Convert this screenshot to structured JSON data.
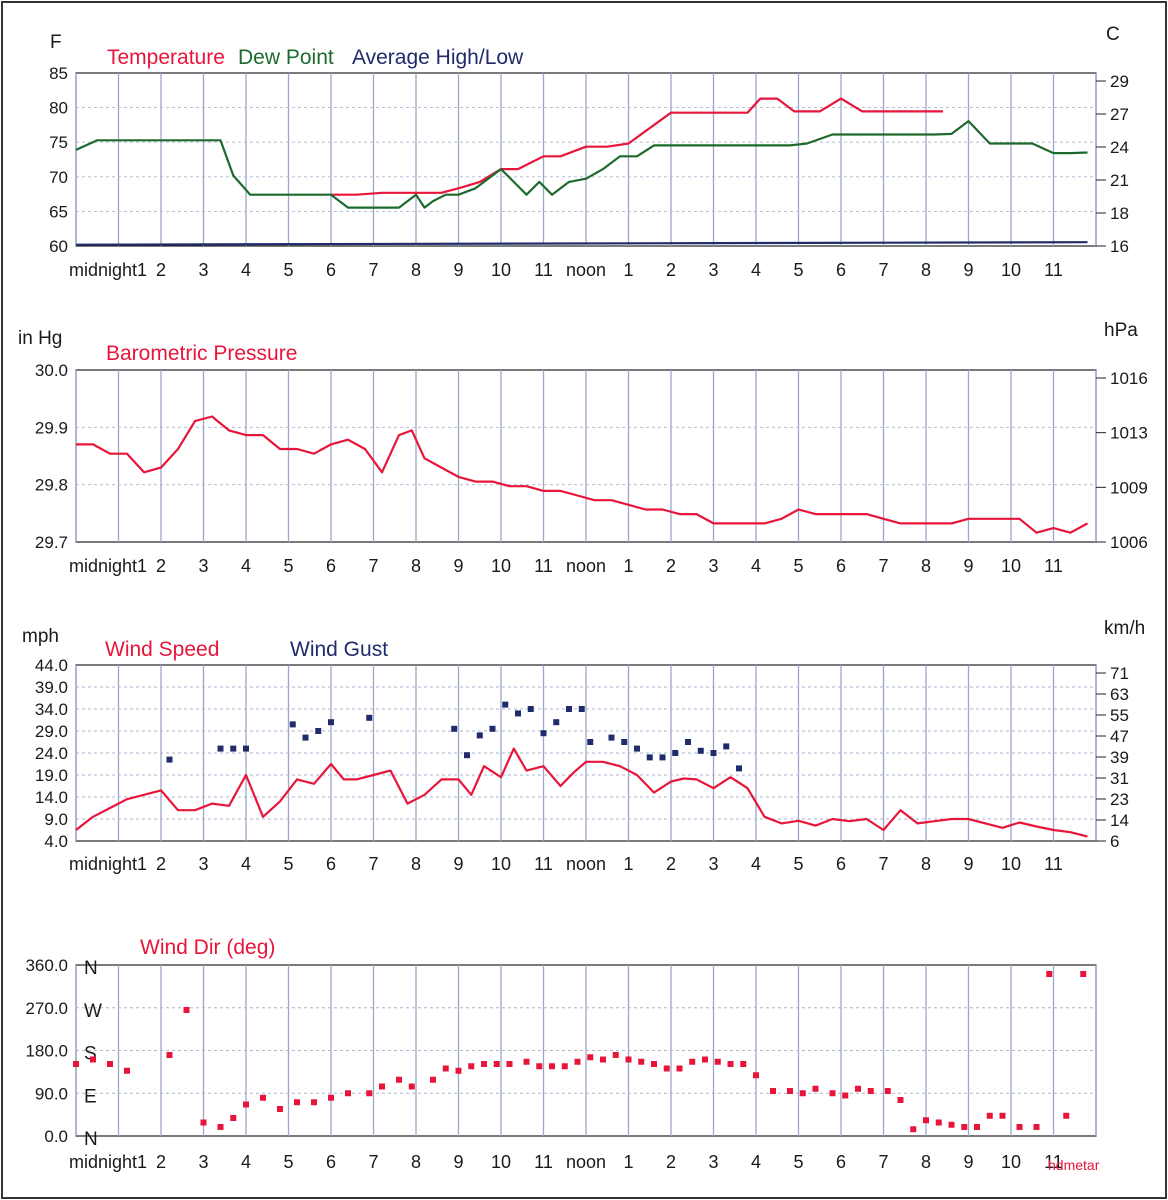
{
  "colors": {
    "temperature": "#e8153b",
    "dew_point": "#1d6b2c",
    "average": "#1f2b6b",
    "pressure": "#e8153b",
    "wind_speed": "#e8153b",
    "wind_gust": "#1f2b6b",
    "wind_dir": "#e8153b",
    "grid": "#9aa7c9"
  },
  "hour_labels": [
    "midnight1",
    "2",
    "3",
    "4",
    "5",
    "6",
    "7",
    "8",
    "9",
    "10",
    "11",
    "noon",
    "1",
    "2",
    "3",
    "4",
    "5",
    "6",
    "7",
    "8",
    "9",
    "10",
    "11"
  ],
  "credit": "hdmetar",
  "chart_data": [
    {
      "id": "temp",
      "type": "line",
      "left_unit": "F",
      "right_unit": "C",
      "legend": [
        "Temperature",
        "Dew Point",
        "Average High/Low"
      ],
      "yticks_left": [
        "85",
        "80",
        "75",
        "70",
        "65",
        "60"
      ],
      "yticks_right": [
        "29",
        "27",
        "24",
        "21",
        "18",
        "16"
      ],
      "ylim": [
        60,
        87
      ],
      "series": [
        {
          "name": "Temperature",
          "color": "#e8153b",
          "x": [
            6.0,
            6.6,
            7.2,
            7.8,
            8.2,
            8.6,
            9.1,
            9.5,
            10.0,
            10.4,
            11.0,
            11.4,
            12.0,
            12.5,
            13.0,
            14.0,
            14.6,
            15.0,
            15.4,
            15.8,
            16.1,
            16.5,
            16.9,
            17.5,
            18.0,
            18.5,
            19.0,
            19.6,
            20.0,
            20.4
          ],
          "y": [
            68,
            68,
            68.3,
            68.3,
            68.3,
            68.3,
            69.2,
            70,
            72,
            72,
            74,
            74,
            75.5,
            75.5,
            76,
            80.8,
            80.8,
            80.8,
            80.8,
            80.8,
            83,
            83,
            81,
            81,
            83,
            81,
            81,
            81,
            81,
            81
          ]
        },
        {
          "name": "Dew Point",
          "color": "#1d6b2c",
          "x": [
            0,
            0.5,
            1.0,
            1.5,
            2.0,
            2.5,
            3.0,
            3.4,
            3.7,
            4.1,
            4.5,
            5.0,
            5.6,
            6.0,
            6.4,
            6.8,
            7.2,
            7.6,
            8.0,
            8.2,
            8.4,
            8.7,
            9.0,
            9.4,
            9.8,
            10.0,
            10.3,
            10.6,
            10.9,
            11.2,
            11.6,
            12.0,
            12.4,
            12.8,
            13.2,
            13.6,
            14.0,
            14.6,
            15.2,
            15.8,
            16.4,
            16.8,
            17.2,
            17.8,
            18.4,
            19.0,
            19.6,
            20.2,
            20.6,
            21.0,
            21.5,
            22.0,
            22.5,
            23.0,
            23.4,
            23.8
          ],
          "y": [
            75,
            76.5,
            76.5,
            76.5,
            76.5,
            76.5,
            76.5,
            76.5,
            71,
            68,
            68,
            68,
            68,
            68,
            66,
            66,
            66,
            66,
            68,
            66,
            67,
            68,
            68,
            69,
            71,
            72,
            70,
            68,
            70,
            68,
            70,
            70.5,
            72,
            74,
            74,
            75.7,
            75.7,
            75.7,
            75.7,
            75.7,
            75.7,
            75.7,
            76,
            77.4,
            77.4,
            77.4,
            77.4,
            77.4,
            77.5,
            79.5,
            76,
            76,
            76,
            74.5,
            74.5,
            74.6
          ]
        },
        {
          "name": "Average High/Low",
          "color": "#1f2b6b",
          "x": [
            0,
            23.8
          ],
          "y": [
            60.2,
            60.6
          ]
        }
      ]
    },
    {
      "id": "pressure",
      "type": "line",
      "left_unit": "in Hg",
      "right_unit": "hPa",
      "legend": [
        "Barometric Pressure"
      ],
      "yticks_left": [
        "30.0",
        "29.9",
        "29.8",
        "29.7"
      ],
      "yticks_right": [
        "1016",
        "1013",
        "1009",
        "1006"
      ],
      "ylim": [
        29.7,
        30.07
      ],
      "series": [
        {
          "name": "Barometric Pressure",
          "color": "#e8153b",
          "x": [
            0,
            0.4,
            0.8,
            1.2,
            1.6,
            2.0,
            2.4,
            2.8,
            3.2,
            3.6,
            4.0,
            4.4,
            4.8,
            5.2,
            5.6,
            6.0,
            6.4,
            6.8,
            7.2,
            7.6,
            7.9,
            8.2,
            8.6,
            9.0,
            9.4,
            9.8,
            10.2,
            10.6,
            11.0,
            11.4,
            11.8,
            12.2,
            12.6,
            13.0,
            13.4,
            13.8,
            14.2,
            14.6,
            15.0,
            15.4,
            15.8,
            16.2,
            16.6,
            17.0,
            17.4,
            17.8,
            18.2,
            18.6,
            19.0,
            19.4,
            19.8,
            20.2,
            20.6,
            21.0,
            21.4,
            21.8,
            22.2,
            22.6,
            23.0,
            23.4,
            23.8
          ],
          "y": [
            29.91,
            29.91,
            29.89,
            29.89,
            29.85,
            29.86,
            29.9,
            29.96,
            29.97,
            29.94,
            29.93,
            29.93,
            29.9,
            29.9,
            29.89,
            29.91,
            29.92,
            29.9,
            29.85,
            29.93,
            29.94,
            29.88,
            29.86,
            29.84,
            29.83,
            29.83,
            29.82,
            29.82,
            29.81,
            29.81,
            29.8,
            29.79,
            29.79,
            29.78,
            29.77,
            29.77,
            29.76,
            29.76,
            29.74,
            29.74,
            29.74,
            29.74,
            29.75,
            29.77,
            29.76,
            29.76,
            29.76,
            29.76,
            29.75,
            29.74,
            29.74,
            29.74,
            29.74,
            29.75,
            29.75,
            29.75,
            29.75,
            29.72,
            29.73,
            29.72,
            29.74
          ]
        }
      ]
    },
    {
      "id": "wind",
      "type": "line",
      "left_unit": "mph",
      "right_unit": "km/h",
      "legend": [
        "Wind Speed",
        "Wind Gust"
      ],
      "yticks_left": [
        "44.0",
        "39.0",
        "34.0",
        "29.0",
        "24.0",
        "19.0",
        "14.0",
        "9.0",
        "4.0"
      ],
      "yticks_right": [
        "71",
        "63",
        "55",
        "47",
        "39",
        "31",
        "23",
        "14",
        "6"
      ],
      "ylim": [
        4,
        44
      ],
      "series": [
        {
          "name": "Wind Speed",
          "color": "#e8153b",
          "x": [
            0,
            0.4,
            0.8,
            1.2,
            1.6,
            2.0,
            2.4,
            2.8,
            3.2,
            3.6,
            4.0,
            4.4,
            4.8,
            5.2,
            5.6,
            6.0,
            6.3,
            6.6,
            7.0,
            7.4,
            7.8,
            8.2,
            8.6,
            9.0,
            9.3,
            9.6,
            10.0,
            10.3,
            10.6,
            11.0,
            11.4,
            11.7,
            12.0,
            12.4,
            12.8,
            13.2,
            13.6,
            14.0,
            14.3,
            14.6,
            15.0,
            15.4,
            15.8,
            16.2,
            16.6,
            17.0,
            17.4,
            17.8,
            18.2,
            18.6,
            19.0,
            19.4,
            19.8,
            20.2,
            20.6,
            21.0,
            21.4,
            21.8,
            22.2,
            22.6,
            23.0,
            23.4,
            23.8
          ],
          "y": [
            6.5,
            9.5,
            11.5,
            13.5,
            14.5,
            15.5,
            11,
            11,
            12.5,
            12,
            19,
            9.5,
            13,
            18,
            17,
            21.5,
            18,
            18,
            19,
            20,
            12.5,
            14.5,
            18,
            18,
            14.5,
            21,
            18.5,
            25,
            20,
            21,
            16.5,
            19.5,
            22,
            22,
            21,
            19,
            15,
            17.5,
            18.2,
            18,
            16,
            18.5,
            16,
            9.5,
            8,
            8.6,
            7.5,
            9,
            8.5,
            9,
            6.5,
            11,
            8,
            8.5,
            9,
            9,
            8,
            7,
            8.2,
            7.3,
            6.5,
            6,
            5
          ]
        },
        {
          "name": "Wind Gust",
          "color": "#1f2b6b",
          "type": "scatter",
          "x": [
            2.2,
            3.4,
            3.7,
            4.0,
            5.1,
            5.4,
            5.7,
            6.0,
            6.9,
            8.9,
            9.2,
            9.5,
            9.8,
            10.1,
            10.4,
            10.7,
            11.0,
            11.3,
            11.6,
            11.9,
            12.1,
            12.6,
            12.9,
            13.2,
            13.5,
            13.8,
            14.1,
            14.4,
            14.7,
            15.0,
            15.3,
            15.6
          ],
          "y": [
            22.5,
            25,
            25,
            25,
            30.5,
            27.5,
            29,
            31,
            32,
            29.5,
            23.5,
            28,
            29.5,
            35,
            33,
            34,
            28.5,
            31,
            34,
            34,
            26.5,
            27.5,
            26.5,
            25,
            23,
            23,
            24,
            26.5,
            24.5,
            24,
            25.5,
            20.5
          ]
        }
      ]
    },
    {
      "id": "winddir",
      "type": "scatter",
      "left_unit": "",
      "right_unit": "",
      "legend": [
        "Wind Dir (deg)"
      ],
      "yticks_left": [
        "360.0",
        "270.0",
        "180.0",
        "90.0",
        "0.0"
      ],
      "compass": [
        "N",
        "W",
        "S",
        "E",
        "N"
      ],
      "ylim": [
        0,
        380
      ],
      "series": [
        {
          "name": "Wind Dir (deg)",
          "color": "#e8153b",
          "x": [
            0,
            0.4,
            0.8,
            1.2,
            2.2,
            2.6,
            3.0,
            3.4,
            3.7,
            4.0,
            4.4,
            4.8,
            5.2,
            5.6,
            6.0,
            6.4,
            6.9,
            7.2,
            7.6,
            7.9,
            8.4,
            8.7,
            9.0,
            9.3,
            9.6,
            9.9,
            10.2,
            10.6,
            10.9,
            11.2,
            11.5,
            11.8,
            12.1,
            12.4,
            12.7,
            13.0,
            13.3,
            13.6,
            13.9,
            14.2,
            14.5,
            14.8,
            15.1,
            15.4,
            15.7,
            16.0,
            16.4,
            16.8,
            17.1,
            17.4,
            17.8,
            18.1,
            18.4,
            18.7,
            19.1,
            19.4,
            19.7,
            20.0,
            20.3,
            20.6,
            20.9,
            21.2,
            21.5,
            21.8,
            22.2,
            22.6,
            22.9,
            23.3,
            23.7
          ],
          "y": [
            160,
            170,
            160,
            145,
            180,
            280,
            30,
            20,
            40,
            70,
            85,
            60,
            75,
            75,
            85,
            95,
            95,
            110,
            125,
            110,
            125,
            150,
            145,
            155,
            160,
            160,
            160,
            165,
            155,
            155,
            155,
            165,
            175,
            170,
            180,
            170,
            165,
            160,
            150,
            150,
            165,
            170,
            165,
            160,
            160,
            135,
            100,
            100,
            95,
            105,
            95,
            90,
            105,
            100,
            100,
            80,
            15,
            35,
            30,
            25,
            20,
            20,
            45,
            45,
            20,
            20,
            360,
            45,
            360
          ]
        }
      ]
    }
  ]
}
